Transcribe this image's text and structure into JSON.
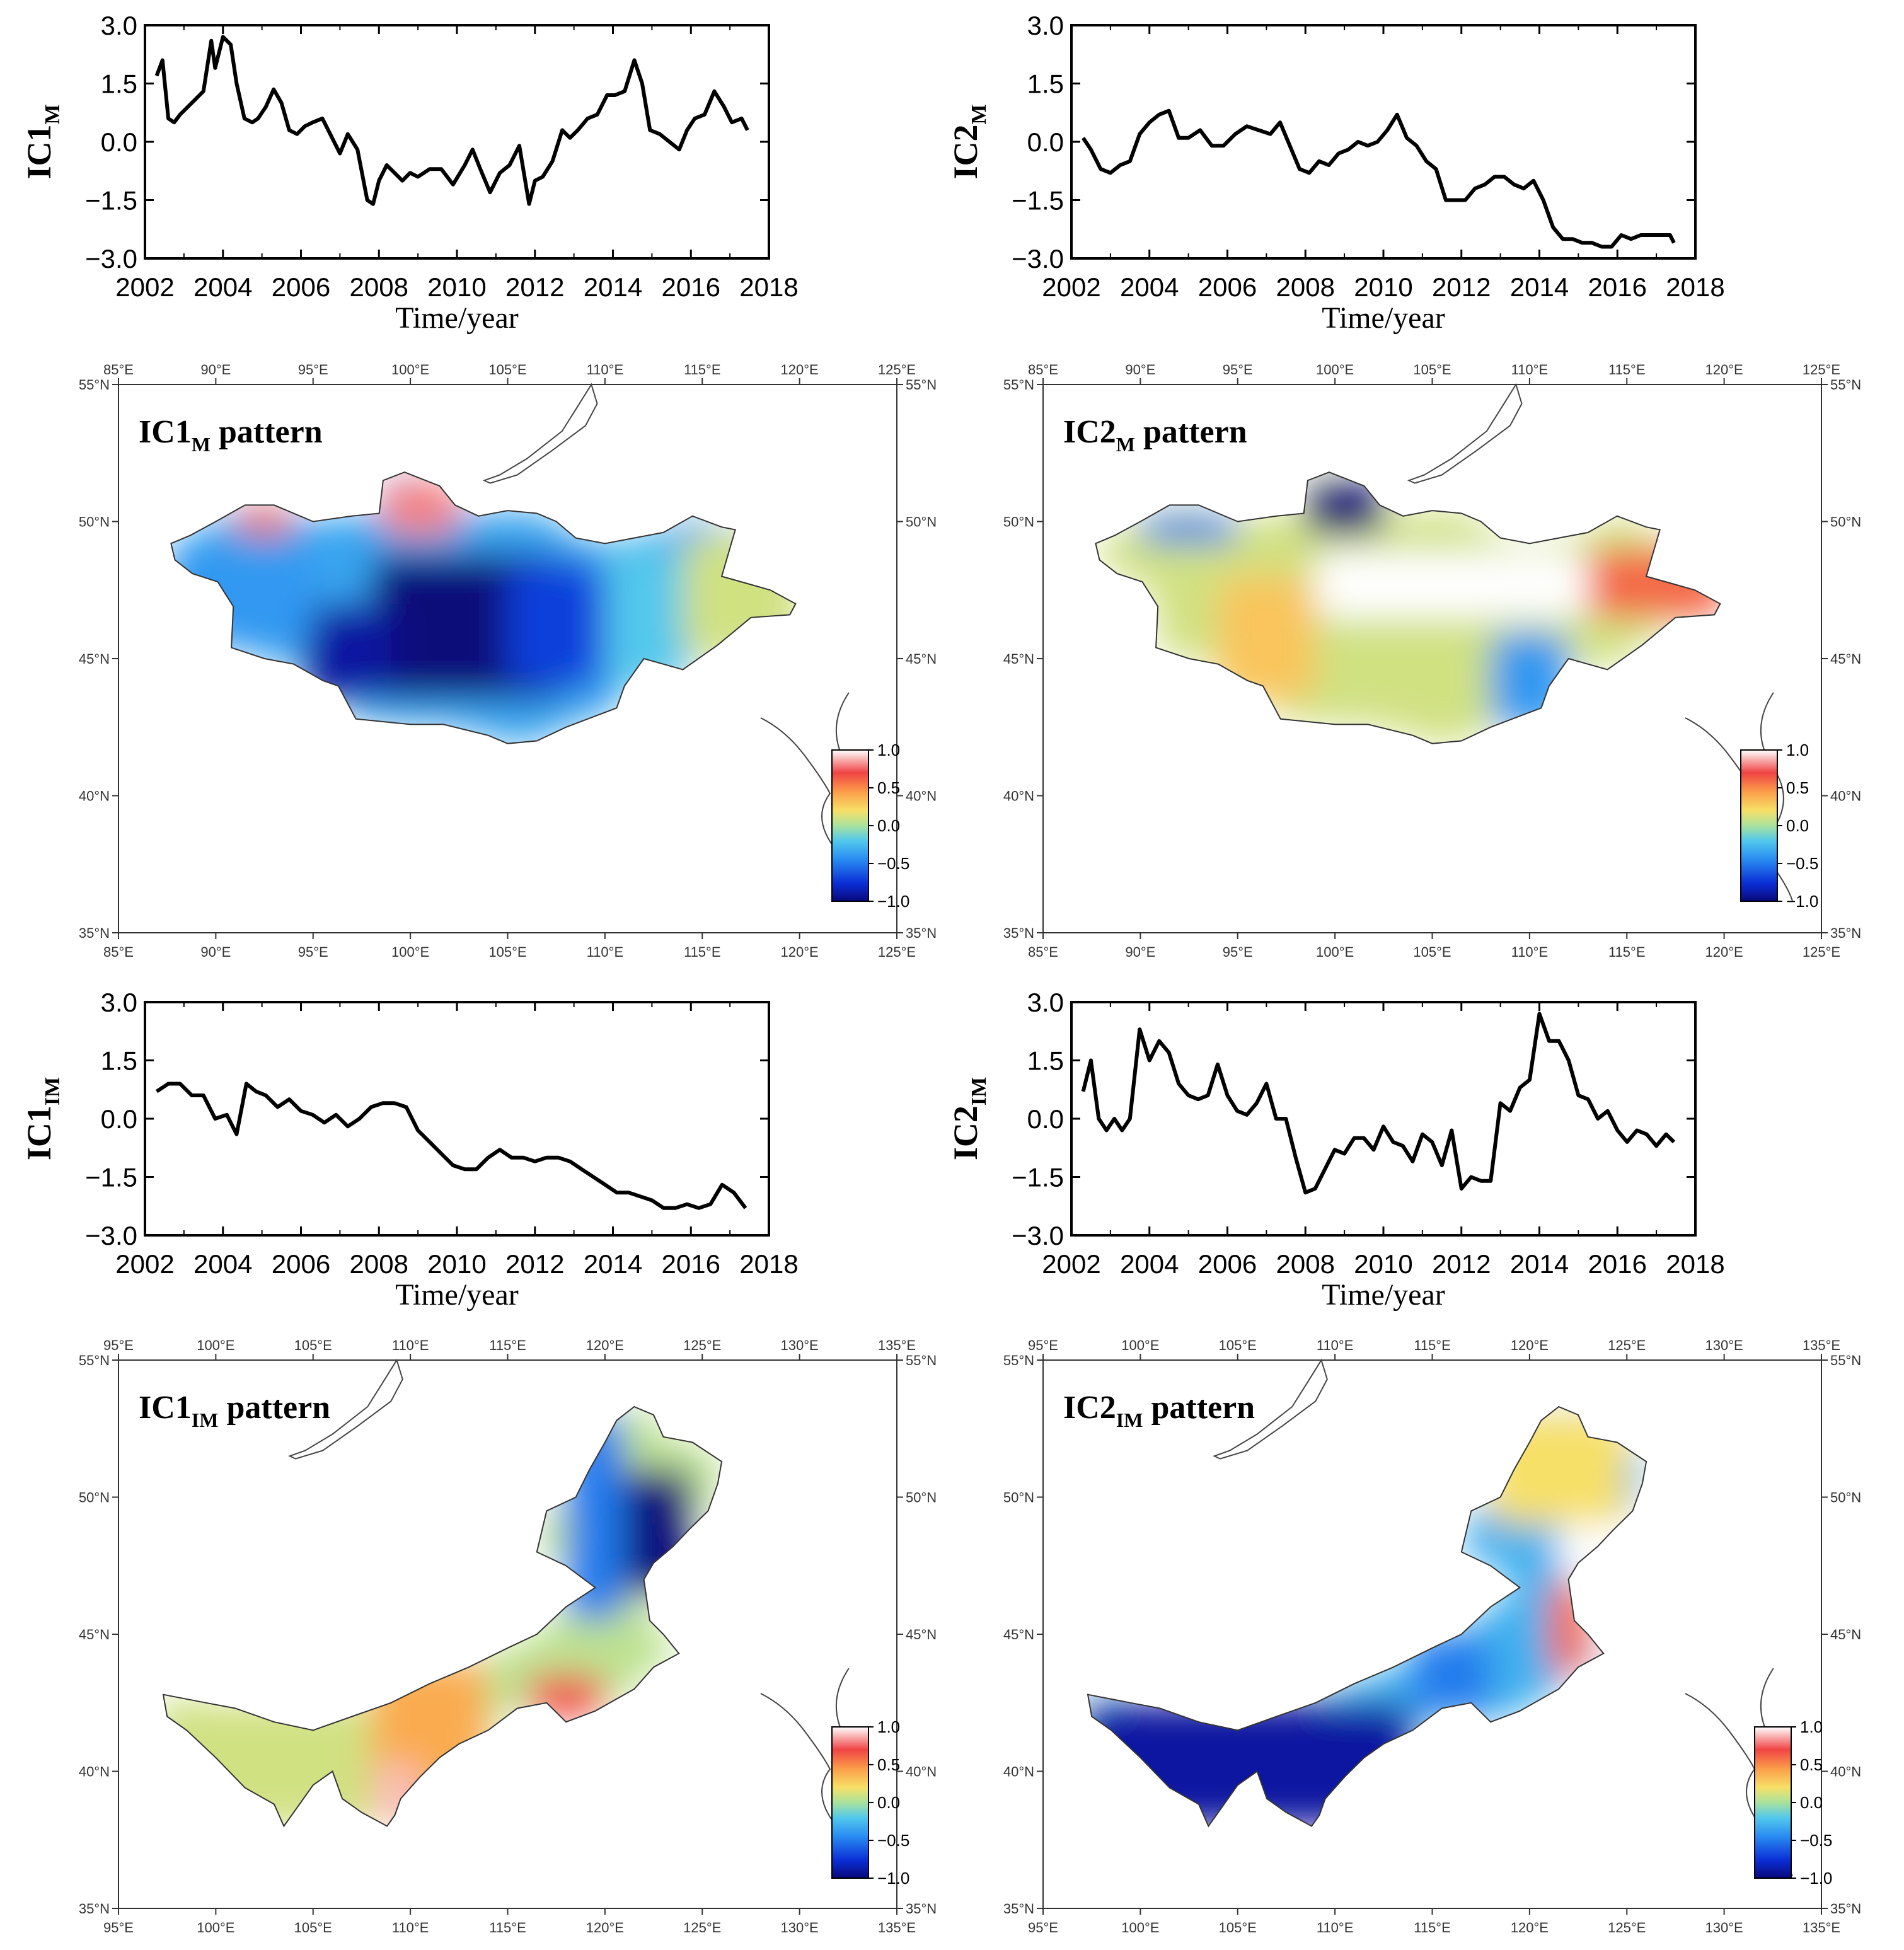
{
  "chart_data": [
    {
      "type": "line",
      "id": "ic1m-series",
      "ylabel": "IC1",
      "ylabel_sub": "M",
      "xlabel": "Time/year",
      "xlim": [
        2002,
        2018
      ],
      "ylim": [
        -3.0,
        3.0
      ],
      "xticks": [
        "2002",
        "2004",
        "2006",
        "2008",
        "2010",
        "2012",
        "2014",
        "2016",
        "2018"
      ],
      "yticks": [
        "3.0",
        "1.5",
        "0.0",
        "−1.5",
        "−3.0"
      ],
      "x": [
        2002.3,
        2002.45,
        2002.6,
        2002.75,
        2002.9,
        2003.1,
        2003.3,
        2003.5,
        2003.7,
        2003.8,
        2004.0,
        2004.2,
        2004.35,
        2004.55,
        2004.75,
        2004.9,
        2005.1,
        2005.3,
        2005.5,
        2005.7,
        2005.9,
        2006.1,
        2006.3,
        2006.55,
        2006.8,
        2007.0,
        2007.2,
        2007.45,
        2007.7,
        2007.85,
        2008.0,
        2008.2,
        2008.4,
        2008.6,
        2008.8,
        2009.0,
        2009.3,
        2009.6,
        2009.9,
        2010.2,
        2010.4,
        2010.6,
        2010.85,
        2011.1,
        2011.35,
        2011.6,
        2011.85,
        2012.0,
        2012.2,
        2012.45,
        2012.7,
        2012.9,
        2013.1,
        2013.35,
        2013.6,
        2013.85,
        2014.05,
        2014.3,
        2014.55,
        2014.75,
        2014.95,
        2015.2,
        2015.45,
        2015.7,
        2015.9,
        2016.1,
        2016.35,
        2016.6,
        2016.85,
        2017.05,
        2017.3,
        2017.45
      ],
      "values": [
        1.7,
        2.1,
        0.6,
        0.5,
        0.7,
        0.9,
        1.1,
        1.3,
        2.6,
        1.9,
        2.7,
        2.5,
        1.5,
        0.6,
        0.5,
        0.6,
        0.9,
        1.35,
        1.0,
        0.3,
        0.2,
        0.4,
        0.5,
        0.6,
        0.1,
        -0.3,
        0.2,
        -0.2,
        -1.5,
        -1.6,
        -1.0,
        -0.6,
        -0.8,
        -1.0,
        -0.8,
        -0.9,
        -0.7,
        -0.7,
        -1.1,
        -0.6,
        -0.2,
        -0.7,
        -1.3,
        -0.8,
        -0.6,
        -0.1,
        -1.6,
        -1.0,
        -0.9,
        -0.5,
        0.3,
        0.1,
        0.3,
        0.6,
        0.7,
        1.2,
        1.2,
        1.3,
        2.1,
        1.5,
        0.3,
        0.2,
        0.0,
        -0.2,
        0.3,
        0.6,
        0.7,
        1.3,
        0.9,
        0.5,
        0.6,
        0.3
      ]
    },
    {
      "type": "line",
      "id": "ic2m-series",
      "ylabel": "IC2",
      "ylabel_sub": "M",
      "xlabel": "Time/year",
      "xlim": [
        2002,
        2018
      ],
      "ylim": [
        -3.0,
        3.0
      ],
      "xticks": [
        "2002",
        "2004",
        "2006",
        "2008",
        "2010",
        "2012",
        "2014",
        "2016",
        "2018"
      ],
      "yticks": [
        "3.0",
        "1.5",
        "0.0",
        "−1.5",
        "−3.0"
      ],
      "x": [
        2002.3,
        2002.5,
        2002.75,
        2003.0,
        2003.25,
        2003.5,
        2003.75,
        2004.0,
        2004.25,
        2004.5,
        2004.75,
        2005.0,
        2005.3,
        2005.6,
        2005.9,
        2006.2,
        2006.5,
        2006.8,
        2007.1,
        2007.35,
        2007.6,
        2007.85,
        2008.1,
        2008.35,
        2008.6,
        2008.85,
        2009.1,
        2009.35,
        2009.6,
        2009.85,
        2010.1,
        2010.35,
        2010.6,
        2010.85,
        2011.1,
        2011.35,
        2011.6,
        2011.85,
        2012.1,
        2012.35,
        2012.6,
        2012.85,
        2013.1,
        2013.35,
        2013.6,
        2013.85,
        2014.1,
        2014.35,
        2014.6,
        2014.85,
        2015.1,
        2015.35,
        2015.6,
        2015.85,
        2016.1,
        2016.35,
        2016.6,
        2016.85,
        2017.1,
        2017.35,
        2017.45
      ],
      "values": [
        0.1,
        -0.2,
        -0.7,
        -0.8,
        -0.6,
        -0.5,
        0.2,
        0.5,
        0.7,
        0.8,
        0.1,
        0.1,
        0.3,
        -0.1,
        -0.1,
        0.2,
        0.4,
        0.3,
        0.2,
        0.5,
        -0.1,
        -0.7,
        -0.8,
        -0.5,
        -0.6,
        -0.3,
        -0.2,
        0.0,
        -0.1,
        0.0,
        0.3,
        0.7,
        0.1,
        -0.1,
        -0.5,
        -0.7,
        -1.5,
        -1.5,
        -1.5,
        -1.2,
        -1.1,
        -0.9,
        -0.9,
        -1.1,
        -1.2,
        -1.0,
        -1.5,
        -2.2,
        -2.5,
        -2.5,
        -2.6,
        -2.6,
        -2.7,
        -2.7,
        -2.4,
        -2.5,
        -2.4,
        -2.4,
        -2.4,
        -2.4,
        -2.6
      ]
    },
    {
      "type": "line",
      "id": "ic1im-series",
      "ylabel": "IC1",
      "ylabel_sub": "IM",
      "xlabel": "Time/year",
      "xlim": [
        2002,
        2018
      ],
      "ylim": [
        -3.0,
        3.0
      ],
      "xticks": [
        "2002",
        "2004",
        "2006",
        "2008",
        "2010",
        "2012",
        "2014",
        "2016",
        "2018"
      ],
      "yticks": [
        "3.0",
        "1.5",
        "0.0",
        "−1.5",
        "−3.0"
      ],
      "x": [
        2002.3,
        2002.6,
        2002.9,
        2003.2,
        2003.5,
        2003.8,
        2004.1,
        2004.35,
        2004.6,
        2004.85,
        2005.1,
        2005.4,
        2005.7,
        2006.0,
        2006.3,
        2006.6,
        2006.9,
        2007.2,
        2007.5,
        2007.8,
        2008.1,
        2008.4,
        2008.7,
        2009.0,
        2009.3,
        2009.6,
        2009.9,
        2010.2,
        2010.5,
        2010.8,
        2011.1,
        2011.4,
        2011.7,
        2012.0,
        2012.3,
        2012.6,
        2012.9,
        2013.2,
        2013.5,
        2013.8,
        2014.1,
        2014.4,
        2014.7,
        2015.0,
        2015.3,
        2015.6,
        2015.9,
        2016.2,
        2016.5,
        2016.8,
        2017.1,
        2017.4
      ],
      "values": [
        0.7,
        0.9,
        0.9,
        0.6,
        0.6,
        0.0,
        0.1,
        -0.4,
        0.9,
        0.7,
        0.6,
        0.3,
        0.5,
        0.2,
        0.1,
        -0.1,
        0.1,
        -0.2,
        0.0,
        0.3,
        0.4,
        0.4,
        0.3,
        -0.3,
        -0.6,
        -0.9,
        -1.2,
        -1.3,
        -1.3,
        -1.0,
        -0.8,
        -1.0,
        -1.0,
        -1.1,
        -1.0,
        -1.0,
        -1.1,
        -1.3,
        -1.5,
        -1.7,
        -1.9,
        -1.9,
        -2.0,
        -2.1,
        -2.3,
        -2.3,
        -2.2,
        -2.3,
        -2.2,
        -1.7,
        -1.9,
        -2.3
      ]
    },
    {
      "type": "line",
      "id": "ic2im-series",
      "ylabel": "IC2",
      "ylabel_sub": "IM",
      "xlabel": "Time/year",
      "xlim": [
        2002,
        2018
      ],
      "ylim": [
        -3.0,
        3.0
      ],
      "xticks": [
        "2002",
        "2004",
        "2006",
        "2008",
        "2010",
        "2012",
        "2014",
        "2016",
        "2018"
      ],
      "yticks": [
        "3.0",
        "1.5",
        "0.0",
        "−1.5",
        "−3.0"
      ],
      "x": [
        2002.3,
        2002.5,
        2002.7,
        2002.9,
        2003.1,
        2003.3,
        2003.5,
        2003.75,
        2004.0,
        2004.25,
        2004.5,
        2004.75,
        2005.0,
        2005.25,
        2005.5,
        2005.75,
        2006.0,
        2006.25,
        2006.5,
        2006.75,
        2007.0,
        2007.25,
        2007.5,
        2007.75,
        2008.0,
        2008.25,
        2008.5,
        2008.75,
        2009.0,
        2009.25,
        2009.5,
        2009.75,
        2010.0,
        2010.25,
        2010.5,
        2010.75,
        2011.0,
        2011.25,
        2011.5,
        2011.75,
        2012.0,
        2012.25,
        2012.5,
        2012.75,
        2013.0,
        2013.25,
        2013.5,
        2013.75,
        2014.0,
        2014.25,
        2014.5,
        2014.75,
        2015.0,
        2015.25,
        2015.5,
        2015.75,
        2016.0,
        2016.25,
        2016.5,
        2016.75,
        2017.0,
        2017.25,
        2017.45
      ],
      "values": [
        0.7,
        1.5,
        0.0,
        -0.3,
        0.0,
        -0.3,
        0.0,
        2.3,
        1.5,
        2.0,
        1.7,
        0.9,
        0.6,
        0.5,
        0.6,
        1.4,
        0.6,
        0.2,
        0.1,
        0.4,
        0.9,
        0.0,
        0.0,
        -1.0,
        -1.9,
        -1.8,
        -1.3,
        -0.8,
        -0.9,
        -0.5,
        -0.5,
        -0.8,
        -0.2,
        -0.6,
        -0.7,
        -1.1,
        -0.4,
        -0.6,
        -1.2,
        -0.3,
        -1.8,
        -1.5,
        -1.6,
        -1.6,
        0.4,
        0.2,
        0.8,
        1.0,
        2.7,
        2.0,
        2.0,
        1.5,
        0.6,
        0.5,
        0.0,
        0.2,
        -0.3,
        -0.6,
        -0.3,
        -0.4,
        -0.7,
        -0.4,
        -0.6
      ]
    },
    {
      "type": "heatmap",
      "id": "ic1m-pattern",
      "title": "IC1",
      "title_sub": "M",
      "title_suffix": " pattern",
      "region": "Mongolia",
      "lon_range": [
        85,
        125
      ],
      "lat_range": [
        35,
        55
      ],
      "lon_ticks": [
        "85°E",
        "90°E",
        "95°E",
        "100°E",
        "105°E",
        "110°E",
        "115°E",
        "120°E",
        "125°E"
      ],
      "lat_ticks": [
        "55°N",
        "50°N",
        "45°N",
        "40°N",
        "35°N"
      ],
      "colorbar_range": [
        -1.0,
        1.0
      ],
      "colorbar_ticks": [
        "1.0",
        "0.5",
        "0.0",
        "−0.5",
        "−1.0"
      ],
      "zones": [
        {
          "lon": [
            98,
            108
          ],
          "lat": [
            43.5,
            48.8
          ],
          "value": -1.0
        },
        {
          "lon": [
            94.5,
            99
          ],
          "lat": [
            43.5,
            47
          ],
          "value": -0.9
        },
        {
          "lon": [
            105,
            110
          ],
          "lat": [
            44,
            48.5
          ],
          "value": -0.7
        },
        {
          "lon": [
            87.5,
            95
          ],
          "lat": [
            45.5,
            49
          ],
          "value": -0.4
        },
        {
          "lon": [
            110,
            114
          ],
          "lat": [
            44,
            49
          ],
          "value": -0.2
        },
        {
          "lon": [
            114,
            120
          ],
          "lat": [
            45,
            49.5
          ],
          "value": 0.1
        },
        {
          "lon": [
            98.5,
            102.5
          ],
          "lat": [
            49.5,
            51.5
          ],
          "value": 0.8
        },
        {
          "lon": [
            91,
            94
          ],
          "lat": [
            49.5,
            50.5
          ],
          "value": 0.6
        }
      ]
    },
    {
      "type": "heatmap",
      "id": "ic2m-pattern",
      "title": "IC2",
      "title_sub": "M",
      "title_suffix": " pattern",
      "region": "Mongolia",
      "lon_range": [
        85,
        125
      ],
      "lat_range": [
        35,
        55
      ],
      "lon_ticks": [
        "85°E",
        "90°E",
        "95°E",
        "100°E",
        "105°E",
        "110°E",
        "115°E",
        "120°E",
        "125°E"
      ],
      "lat_ticks": [
        "55°N",
        "50°N",
        "45°N",
        "40°N",
        "35°N"
      ],
      "colorbar_range": [
        -1.0,
        1.0
      ],
      "colorbar_ticks": [
        "1.0",
        "0.5",
        "0.0",
        "−0.5",
        "−1.0"
      ],
      "zones": [
        {
          "lon": [
            99,
            113
          ],
          "lat": [
            46.5,
            48.9
          ],
          "value": 1.0
        },
        {
          "lon": [
            113,
            120
          ],
          "lat": [
            46.5,
            49
          ],
          "value": 0.6
        },
        {
          "lon": [
            94,
            99
          ],
          "lat": [
            43.5,
            48
          ],
          "value": 0.3
        },
        {
          "lon": [
            99,
            108
          ],
          "lat": [
            43,
            46.5
          ],
          "value": 0.1
        },
        {
          "lon": [
            108,
            112
          ],
          "lat": [
            42.5,
            46
          ],
          "value": -0.4
        },
        {
          "lon": [
            98.5,
            102.5
          ],
          "lat": [
            49.5,
            51.5
          ],
          "value": -1.0
        },
        {
          "lon": [
            90,
            95
          ],
          "lat": [
            49.2,
            50.2
          ],
          "value": -0.5
        }
      ]
    },
    {
      "type": "heatmap",
      "id": "ic1im-pattern",
      "title": "IC1",
      "title_sub": "IM",
      "title_suffix": " pattern",
      "region": "Inner Mongolia",
      "lon_range": [
        95,
        135
      ],
      "lat_range": [
        35,
        55
      ],
      "lon_ticks": [
        "95°E",
        "100°E",
        "105°E",
        "110°E",
        "115°E",
        "120°E",
        "125°E",
        "130°E",
        "135°E"
      ],
      "lat_ticks": [
        "55°N",
        "50°N",
        "45°N",
        "40°N",
        "35°N"
      ],
      "colorbar_range": [
        -1.0,
        1.0
      ],
      "colorbar_ticks": [
        "1.0",
        "0.5",
        "0.0",
        "−0.5",
        "−1.0"
      ],
      "zones": [
        {
          "lon": [
            120.5,
            124.5
          ],
          "lat": [
            46.5,
            51
          ],
          "value": -1.0
        },
        {
          "lon": [
            118,
            121
          ],
          "lat": [
            45.5,
            53
          ],
          "value": -0.5
        },
        {
          "lon": [
            108,
            114
          ],
          "lat": [
            38,
            44
          ],
          "value": 0.4
        },
        {
          "lon": [
            116,
            120
          ],
          "lat": [
            42,
            43.5
          ],
          "value": 0.7
        },
        {
          "lon": [
            108.3,
            110.5
          ],
          "lat": [
            38,
            40.3
          ],
          "value": 0.9
        },
        {
          "lon": [
            97,
            108
          ],
          "lat": [
            38,
            42.5
          ],
          "value": 0.1
        }
      ]
    },
    {
      "type": "heatmap",
      "id": "ic2im-pattern",
      "title": "IC2",
      "title_sub": "IM",
      "title_suffix": " pattern",
      "region": "Inner Mongolia",
      "lon_range": [
        95,
        135
      ],
      "lat_range": [
        35,
        55
      ],
      "lon_ticks": [
        "95°E",
        "100°E",
        "105°E",
        "110°E",
        "115°E",
        "120°E",
        "125°E",
        "130°E",
        "135°E"
      ],
      "lat_ticks": [
        "55°N",
        "50°N",
        "45°N",
        "40°N",
        "35°N"
      ],
      "colorbar_range": [
        -1.0,
        1.0
      ],
      "colorbar_ticks": [
        "1.0",
        "0.5",
        "0.0",
        "−0.5",
        "−1.0"
      ],
      "zones": [
        {
          "lon": [
            97,
            114
          ],
          "lat": [
            38,
            42.5
          ],
          "value": -0.9
        },
        {
          "lon": [
            114,
            118
          ],
          "lat": [
            42,
            45
          ],
          "value": -0.5
        },
        {
          "lon": [
            121.5,
            124.5
          ],
          "lat": [
            47,
            49.5
          ],
          "value": 1.0
        },
        {
          "lon": [
            121,
            123
          ],
          "lat": [
            43.5,
            47
          ],
          "value": 0.6
        },
        {
          "lon": [
            118,
            125
          ],
          "lat": [
            49,
            53
          ],
          "value": 0.2
        }
      ]
    }
  ]
}
